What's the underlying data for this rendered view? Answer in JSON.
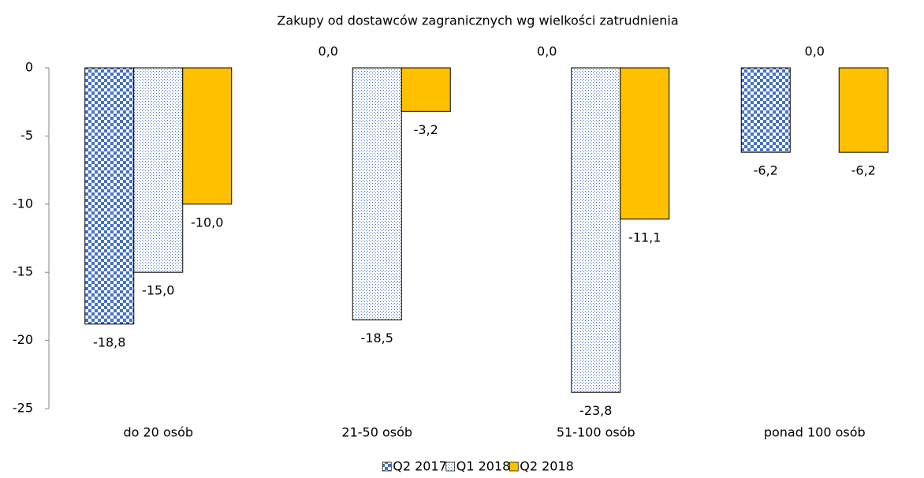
{
  "chart_data": {
    "type": "bar",
    "title": "Zakupy od dostawców zagranicznych wg wielkości zatrudnienia",
    "categories": [
      "do 20 osób",
      "21-50 osób",
      "51-100 osób",
      "ponad 100 osób"
    ],
    "series": [
      {
        "name": "Q2 2017",
        "color": "#4472c4",
        "pattern": "checker",
        "values": [
          -18.8,
          0.0,
          0.0,
          -6.2
        ],
        "value_labels": [
          "-18,8",
          "0,0",
          "0,0",
          "-6,2"
        ]
      },
      {
        "name": "Q1 2018",
        "color": "#4472c4",
        "pattern": "dots",
        "values": [
          -15.0,
          -18.5,
          -23.8,
          0.0
        ],
        "value_labels": [
          "-15,0",
          "-18,5",
          "-23,8",
          "0,0"
        ]
      },
      {
        "name": "Q2 2018",
        "color": "#ffc000",
        "pattern": "solid",
        "values": [
          -10.0,
          -3.2,
          -11.1,
          -6.2
        ],
        "value_labels": [
          "-10,0",
          "-3,2",
          "-11,1",
          "-6,2"
        ]
      }
    ],
    "ylim": [
      -25,
      0
    ],
    "yticks": [
      -25,
      -20,
      -15,
      -10,
      -5,
      0
    ],
    "grid": false,
    "legend": "bottom"
  }
}
